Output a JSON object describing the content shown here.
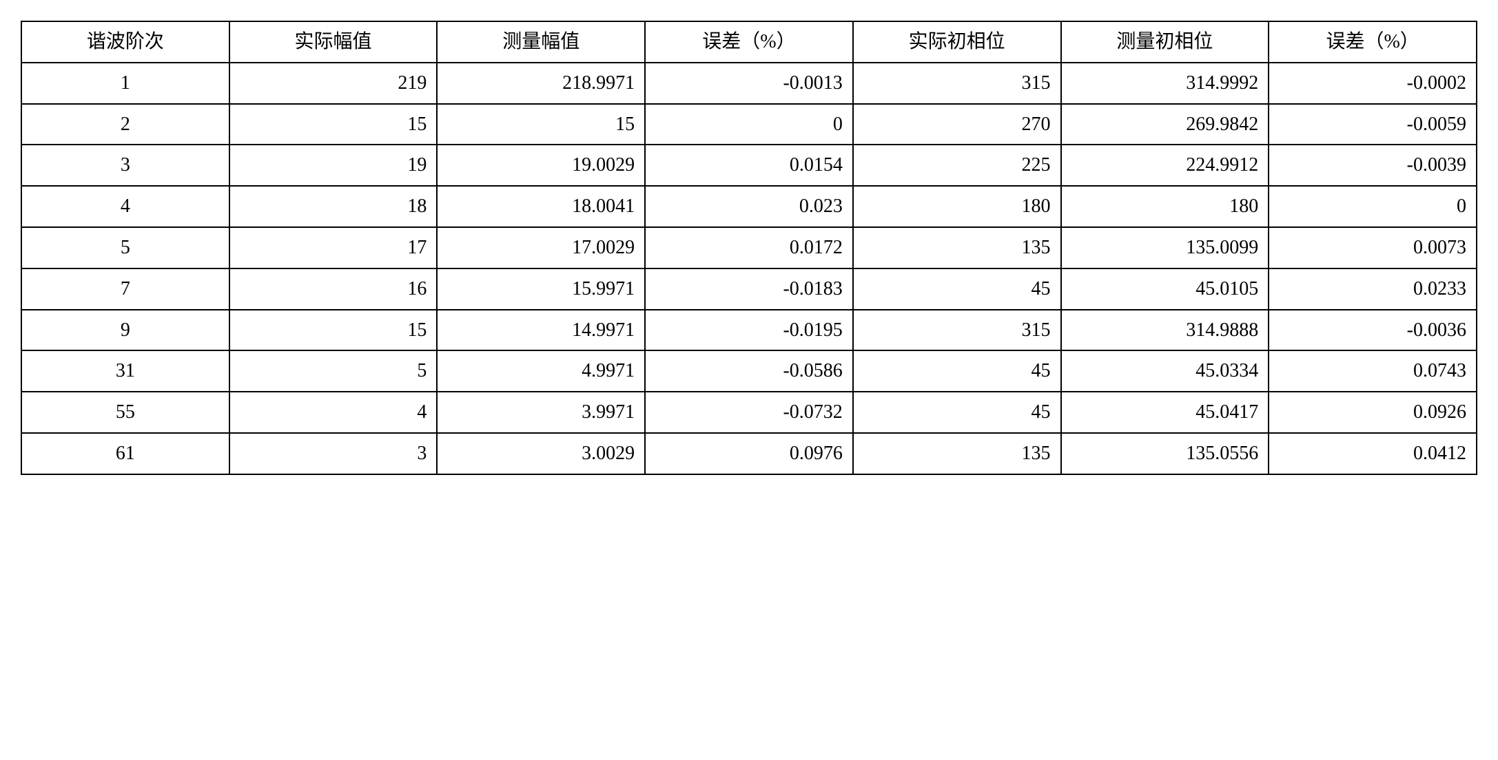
{
  "table": {
    "columns": [
      "谐波阶次",
      "实际幅值",
      "测量幅值",
      "误差（%）",
      "实际初相位",
      "测量初相位",
      "误差（%）"
    ],
    "rows": [
      [
        "1",
        "219",
        "218.9971",
        "-0.0013",
        "315",
        "314.9992",
        "-0.0002"
      ],
      [
        "2",
        "15",
        "15",
        "0",
        "270",
        "269.9842",
        "-0.0059"
      ],
      [
        "3",
        "19",
        "19.0029",
        "0.0154",
        "225",
        "224.9912",
        "-0.0039"
      ],
      [
        "4",
        "18",
        "18.0041",
        "0.023",
        "180",
        "180",
        "0"
      ],
      [
        "5",
        "17",
        "17.0029",
        "0.0172",
        "135",
        "135.0099",
        "0.0073"
      ],
      [
        "7",
        "16",
        "15.9971",
        "-0.0183",
        "45",
        "45.0105",
        "0.0233"
      ],
      [
        "9",
        "15",
        "14.9971",
        "-0.0195",
        "315",
        "314.9888",
        "-0.0036"
      ],
      [
        "31",
        "5",
        "4.9971",
        "-0.0586",
        "45",
        "45.0334",
        "0.0743"
      ],
      [
        "55",
        "4",
        "3.9971",
        "-0.0732",
        "45",
        "45.0417",
        "0.0926"
      ],
      [
        "61",
        "3",
        "3.0029",
        "0.0976",
        "135",
        "135.0556",
        "0.0412"
      ]
    ],
    "border_color": "#000000",
    "background_color": "#ffffff",
    "font_size_pt": 21,
    "column_widths_pct": [
      14.3,
      14.3,
      14.3,
      14.3,
      14.3,
      14.3,
      14.3
    ],
    "header_align": "center",
    "first_col_align": "center",
    "data_align": "right"
  }
}
